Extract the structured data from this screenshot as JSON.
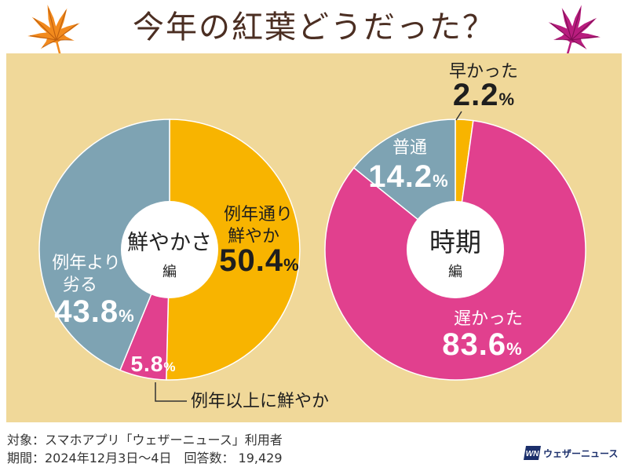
{
  "header": {
    "title": "今年の紅葉どうだった？",
    "left_icon": "maple-leaf-icon",
    "right_icon": "maple-leaf-icon"
  },
  "colors": {
    "title": "#4B2E22",
    "panel_background": "#F0D899",
    "leaf_left": "#F28A1D",
    "leaf_right": "#B81D7E",
    "logo": "#1B2F6B"
  },
  "chart_data": [
    {
      "type": "pie",
      "center_label": "鮮やかさ",
      "center_sublabel": "編",
      "unit": "%",
      "slices": [
        {
          "label_lines": [
            "例年通り",
            "鮮やか"
          ],
          "value": 50.4,
          "color": "#F8B400"
        },
        {
          "label_lines": [
            "例年以上に鮮やか"
          ],
          "value": 5.8,
          "color": "#E1408E"
        },
        {
          "label_lines": [
            "例年より",
            "劣る"
          ],
          "value": 43.8,
          "color": "#7EA3B3"
        }
      ]
    },
    {
      "type": "pie",
      "center_label": "時期",
      "center_sublabel": "編",
      "unit": "%",
      "slices": [
        {
          "label_lines": [
            "早かった"
          ],
          "value": 2.2,
          "color": "#F8B400"
        },
        {
          "label_lines": [
            "遅かった"
          ],
          "value": 83.6,
          "color": "#E1408E"
        },
        {
          "label_lines": [
            "普通"
          ],
          "value": 14.2,
          "color": "#7EA3B3"
        }
      ]
    }
  ],
  "footer": {
    "target": "対象：スマホアプリ「ウェザーニュース」利用者",
    "period": "期間：2024年12月3日〜4日",
    "respondents": "回答数： 19,429"
  },
  "logo": {
    "mark": "WN",
    "text": "ウェザーニュース"
  }
}
